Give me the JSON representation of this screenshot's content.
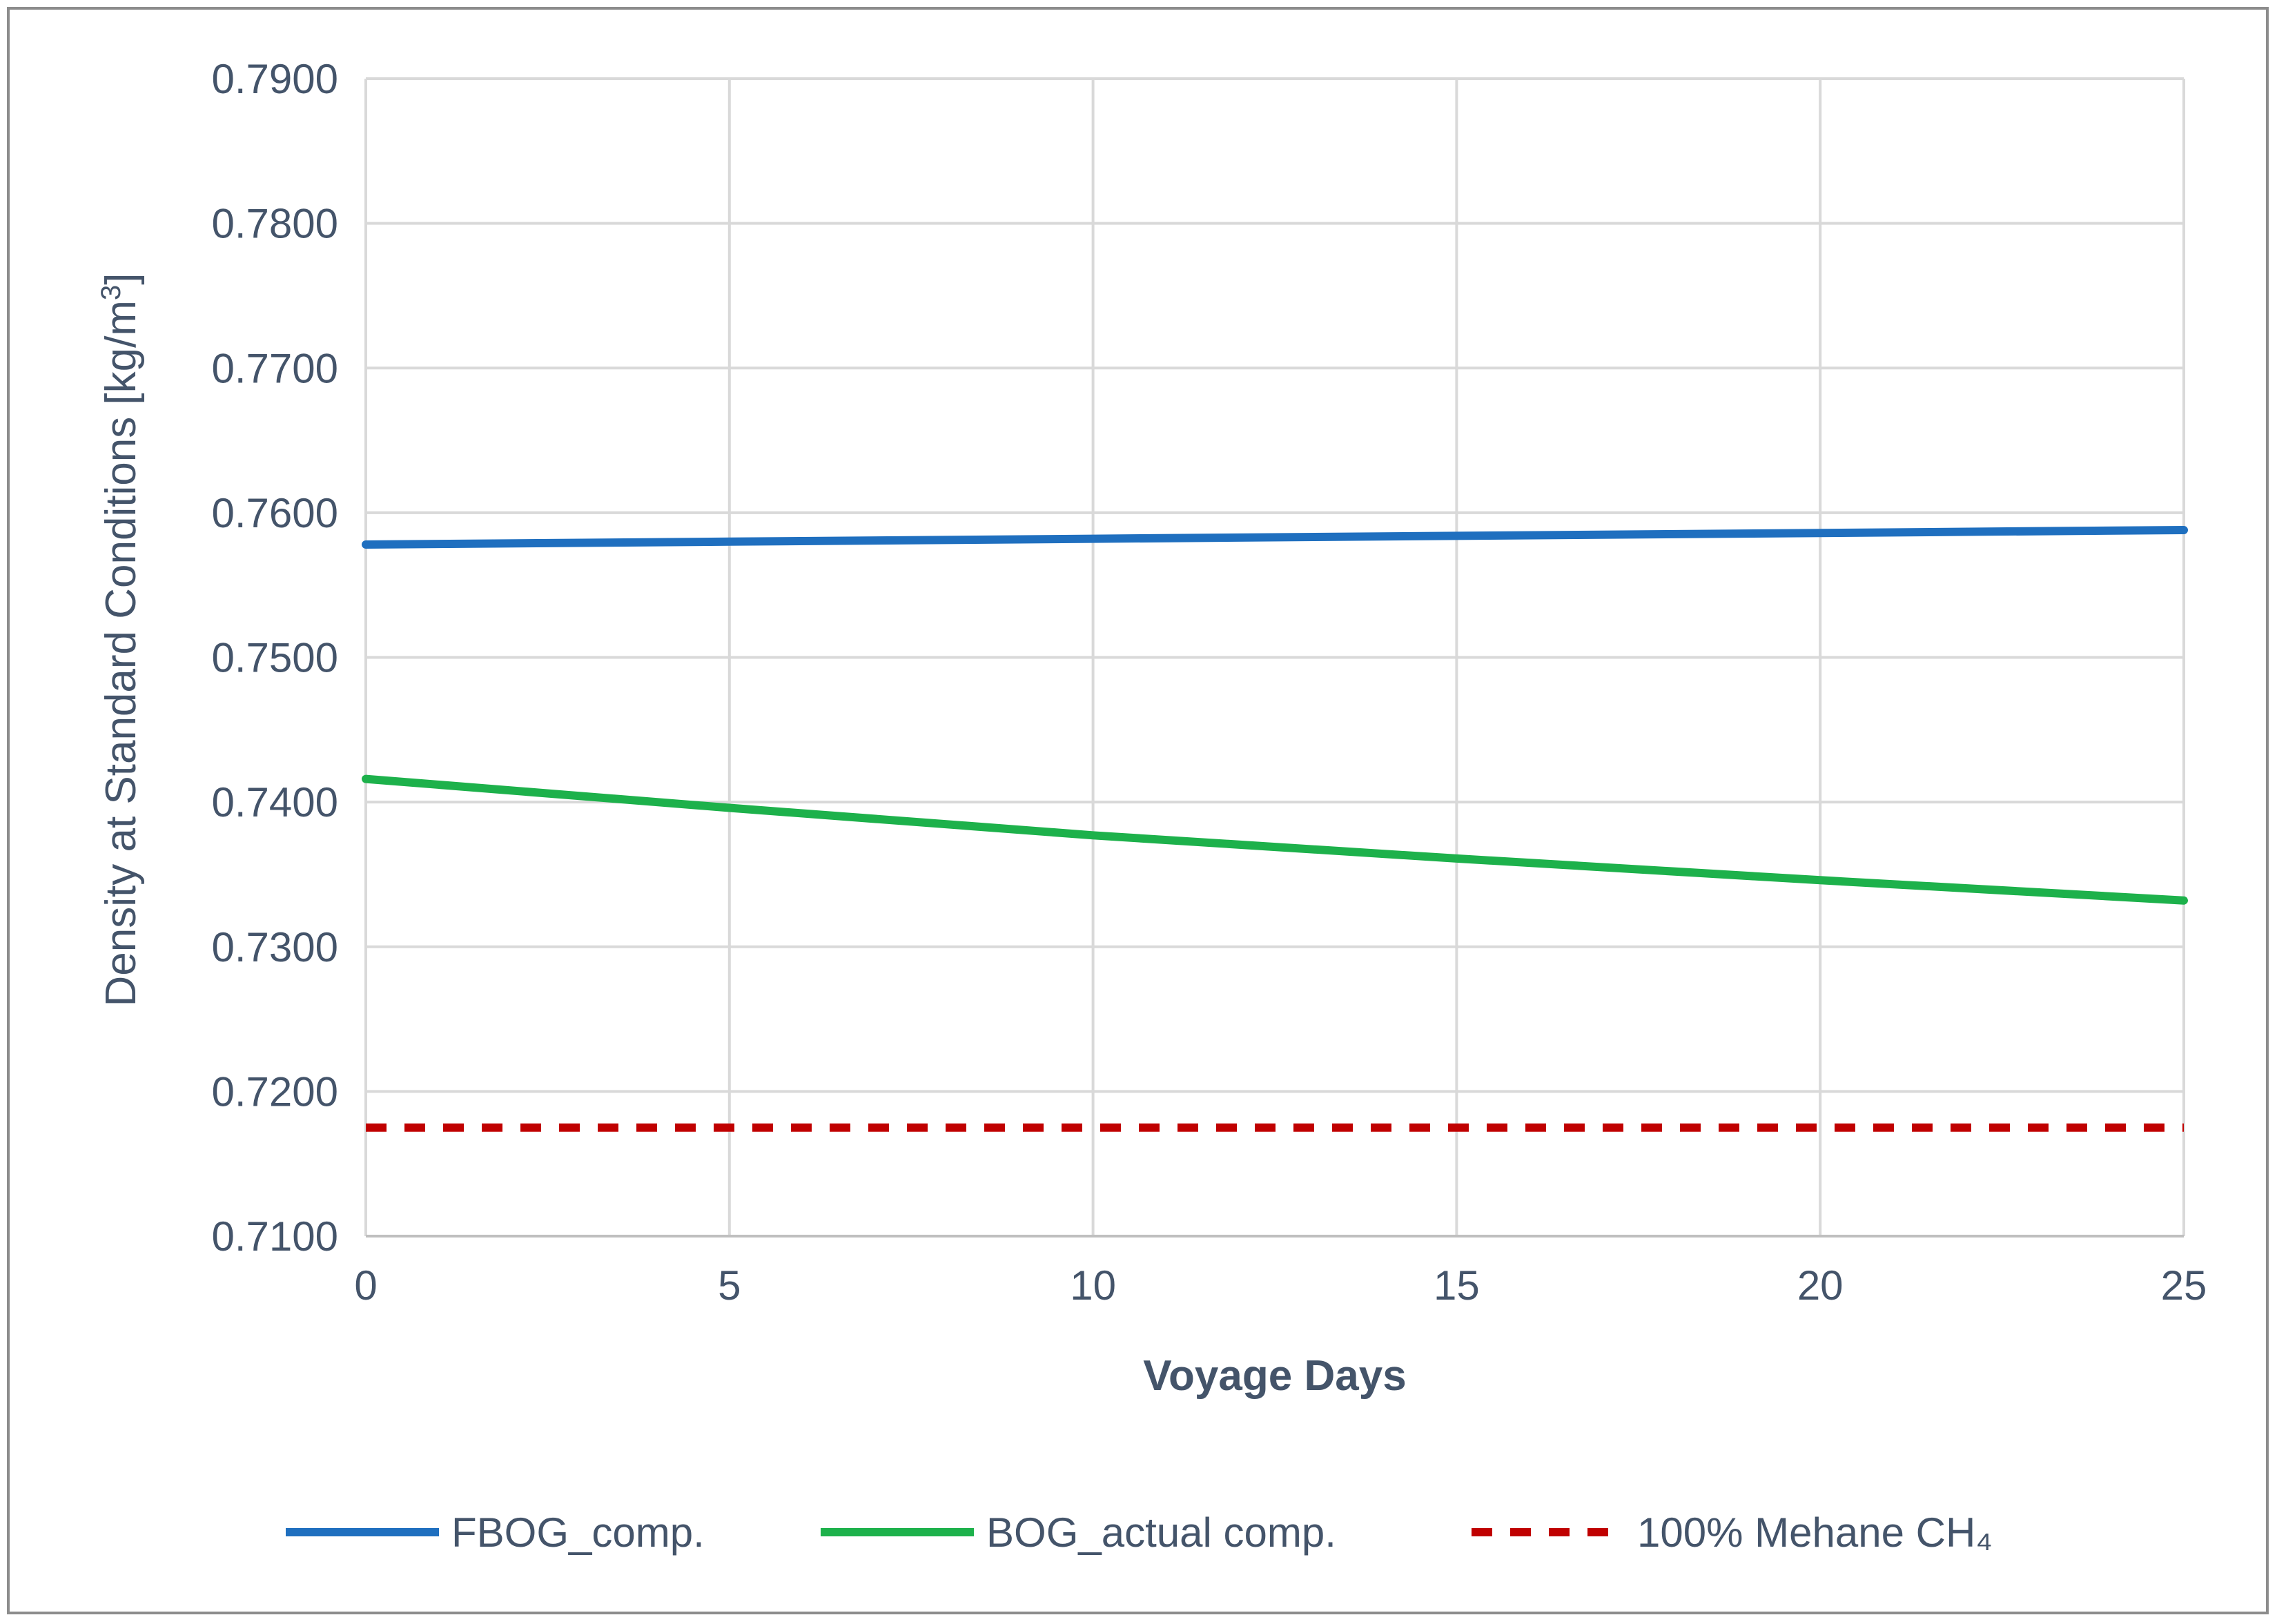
{
  "chart_data": {
    "type": "line",
    "title": "",
    "xlabel": "Voyage Days",
    "ylabel": "Density at Standard Conditions  [kg/m3]",
    "ylabel_main": "Density at Standard Conditions  [kg/m",
    "ylabel_sup": "3",
    "ylabel_end": "]",
    "xlim": [
      0,
      25
    ],
    "ylim": [
      0.71,
      0.79
    ],
    "x_ticks": [
      0,
      5,
      10,
      15,
      20,
      25
    ],
    "x_tick_labels": [
      "0",
      "5",
      "10",
      "15",
      "20",
      "25"
    ],
    "y_ticks": [
      0.71,
      0.72,
      0.73,
      0.74,
      0.75,
      0.76,
      0.77,
      0.78,
      0.79
    ],
    "y_tick_labels": [
      "0.7100",
      "0.7200",
      "0.7300",
      "0.7400",
      "0.7500",
      "0.7600",
      "0.7700",
      "0.7800",
      "0.7900"
    ],
    "grid": true,
    "legend_position": "bottom",
    "x": [
      0,
      5,
      10,
      15,
      20,
      25
    ],
    "series": [
      {
        "name": "FBOG_comp.",
        "color": "#1f6fbf",
        "dash": "solid",
        "values": [
          0.7578,
          0.758,
          0.7582,
          0.7584,
          0.7586,
          0.7588
        ]
      },
      {
        "name": "BOG_actual comp.",
        "color": "#1db14b",
        "dash": "solid",
        "values": [
          0.7416,
          0.7396,
          0.7377,
          0.7361,
          0.7346,
          0.7332
        ]
      },
      {
        "name": "100% Mehane CH₄",
        "color": "#c00000",
        "dash": "dashed",
        "values": [
          0.7175,
          0.7175,
          0.7175,
          0.7175,
          0.7175,
          0.7175
        ]
      }
    ]
  }
}
